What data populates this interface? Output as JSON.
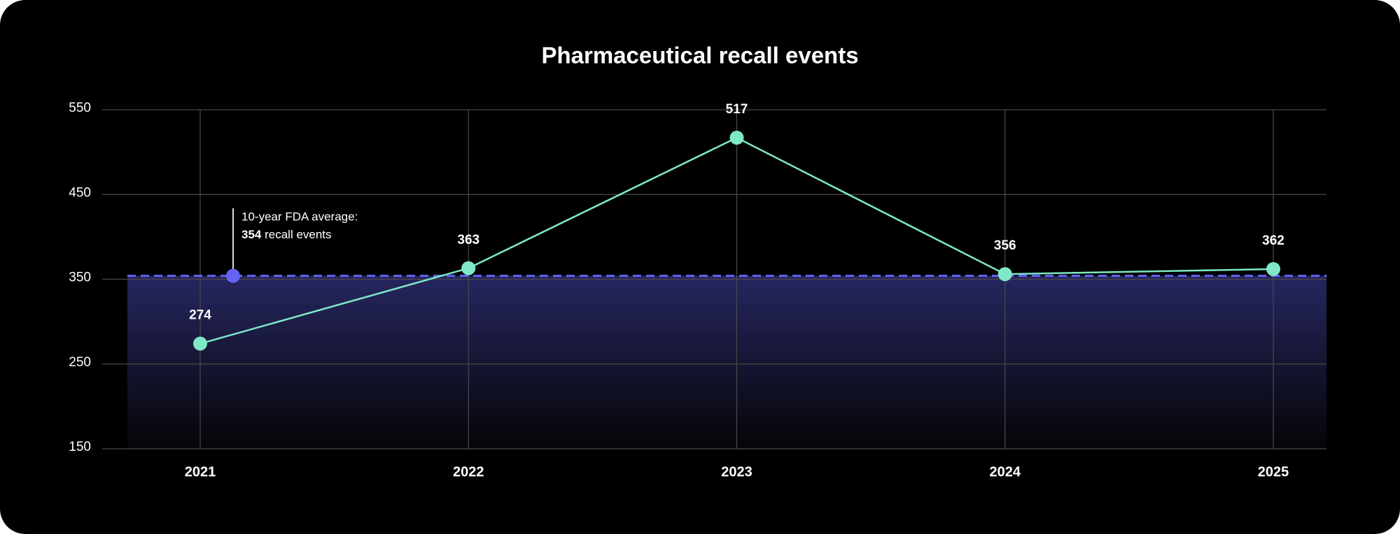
{
  "chart_data": {
    "type": "line",
    "title": "Pharmaceutical recall events",
    "categories": [
      "2021",
      "2022",
      "2023",
      "2024",
      "2025"
    ],
    "values": [
      274,
      363,
      517,
      356,
      362
    ],
    "color": "#7ee8c8",
    "ylim": [
      150,
      550
    ],
    "yticks": [
      150,
      250,
      350,
      450,
      550
    ],
    "grid": true,
    "reference_line": {
      "value": 354,
      "label": "354",
      "text": "10-year FDA average:",
      "suffix": "recall events",
      "color": "#6464f0"
    }
  }
}
